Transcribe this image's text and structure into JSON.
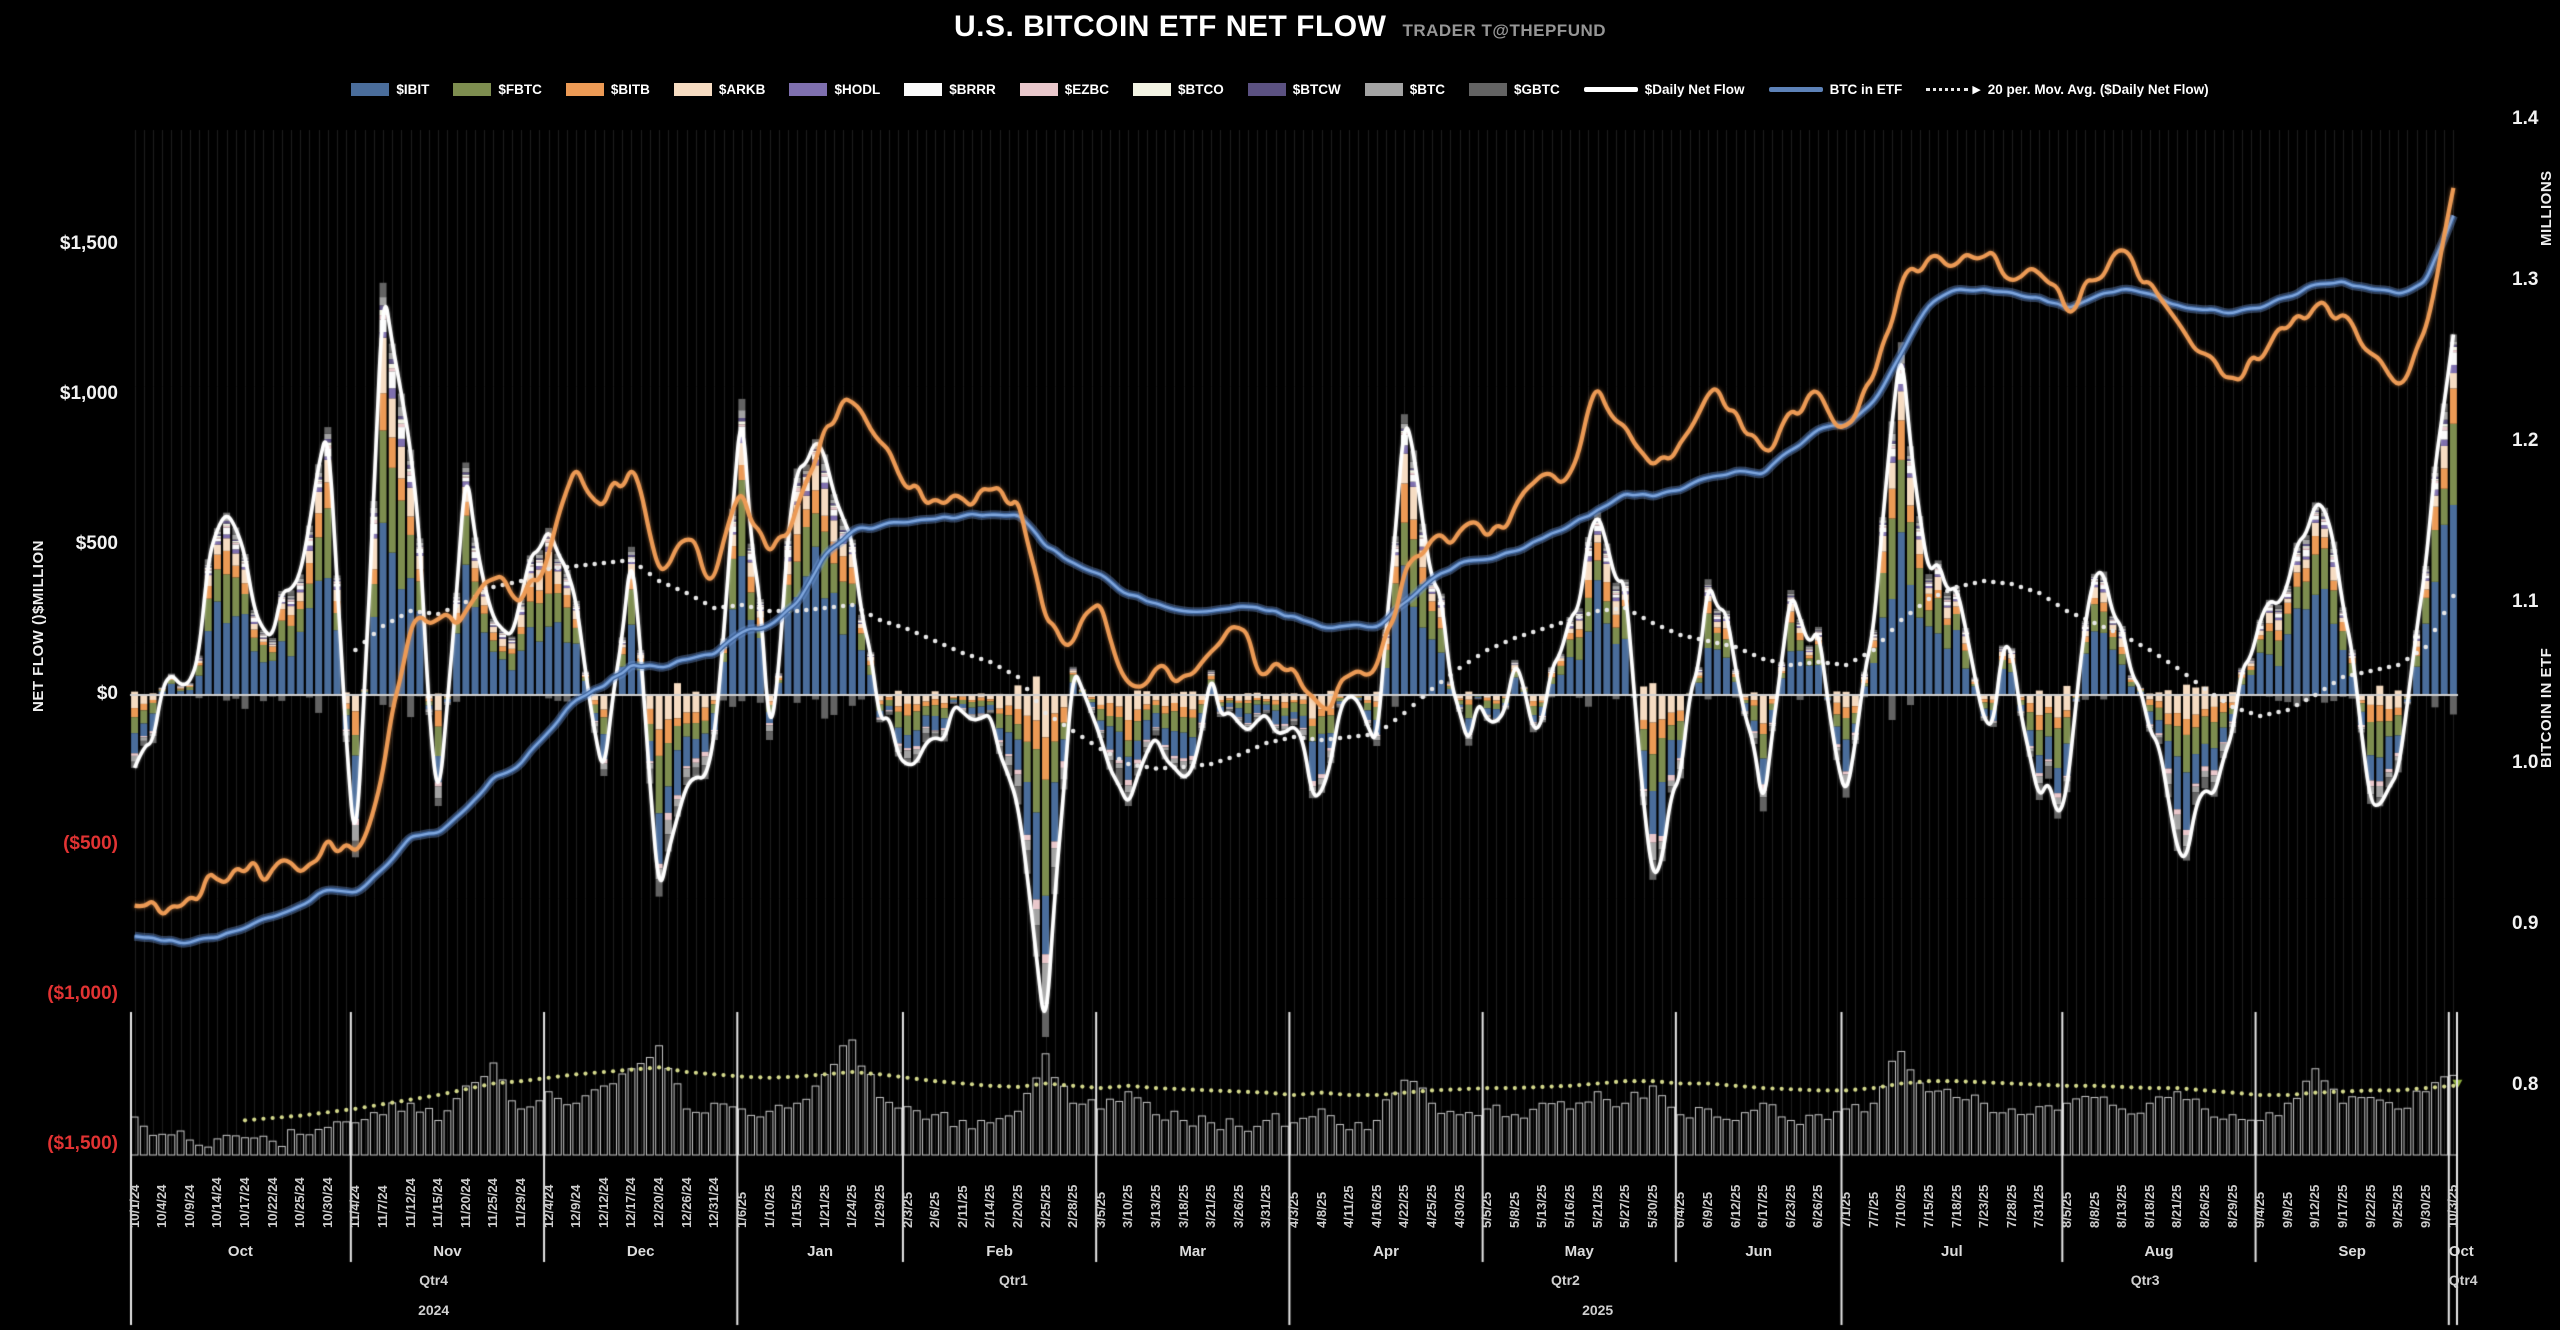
{
  "title": "U.S. BITCOIN ETF NET FLOW",
  "subtitle": "TRADER T@THEPFUND",
  "colors": {
    "background": "#000000",
    "gridline": "#1e1e1e",
    "zero_line": "#cfcfcf",
    "separator": "#e8e8e8",
    "negative_tick": "#e23333",
    "daily_net_flow_line": "#ffffff",
    "btc_in_etf_line_core": "#7fa6dd",
    "btc_in_etf_line_glow": "#3f659c",
    "price_line_orange": "#ec9a55",
    "moving_avg_dots": "#e8e8e8",
    "volume_bar_outline": "#c9c9c9",
    "volume_ma_dots": "#d4d98c",
    "volume_ma_end_marker": "#8fae3e"
  },
  "legend": [
    {
      "label": "$IBIT",
      "color": "#4a6d9b",
      "type": "bar"
    },
    {
      "label": "$FBTC",
      "color": "#7d8d4f",
      "type": "bar"
    },
    {
      "label": "$BITB",
      "color": "#ec9a55",
      "type": "bar"
    },
    {
      "label": "$ARKB",
      "color": "#f6dcc2",
      "type": "bar"
    },
    {
      "label": "$HODL",
      "color": "#7e6fae",
      "type": "bar"
    },
    {
      "label": "$BRRR",
      "color": "#fafafa",
      "type": "bar"
    },
    {
      "label": "$EZBC",
      "color": "#e9c7cb",
      "type": "bar"
    },
    {
      "label": "$BTCO",
      "color": "#f2f3e3",
      "type": "bar"
    },
    {
      "label": "$BTCW",
      "color": "#5b5181",
      "type": "bar"
    },
    {
      "label": "$BTC",
      "color": "#a3a3a3",
      "type": "bar"
    },
    {
      "label": "$GBTC",
      "color": "#636363",
      "type": "bar"
    },
    {
      "label": "$Daily Net Flow",
      "color": "#ffffff",
      "type": "line"
    },
    {
      "label": "BTC in ETF",
      "color": "#5d82b8",
      "type": "line"
    },
    {
      "label": "20 per. Mov. Avg. ($Daily Net Flow)",
      "color": "#e8e8e8",
      "type": "dotted",
      "arrow": "▶"
    }
  ],
  "left_axis": {
    "title": "NET FLOW ()$MILLION",
    "ticks": [
      {
        "label": "$1,500",
        "value": 1500,
        "negative": false
      },
      {
        "label": "$1,000",
        "value": 1000,
        "negative": false
      },
      {
        "label": "$500",
        "value": 500,
        "negative": false
      },
      {
        "label": "$0",
        "value": 0,
        "negative": false
      },
      {
        "label": "($500)",
        "value": -500,
        "negative": true
      },
      {
        "label": "($1,000)",
        "value": -1000,
        "negative": true
      },
      {
        "label": "($1,500)",
        "value": -1500,
        "negative": true
      }
    ]
  },
  "right_axis": {
    "title": "BITCOIN IN ETF",
    "unit": "MILLIONS",
    "ticks": [
      1.4,
      1.3,
      1.2,
      1.1,
      1.0,
      0.9,
      0.8
    ]
  },
  "chart_data": {
    "type": "combo",
    "x_axis": {
      "date_labels": [
        "10/1/24",
        "10/4/24",
        "10/9/24",
        "10/14/24",
        "10/17/24",
        "10/22/24",
        "10/25/24",
        "10/30/24",
        "11/4/24",
        "11/7/24",
        "11/12/24",
        "11/15/24",
        "11/20/24",
        "11/25/24",
        "11/29/24",
        "12/4/24",
        "12/9/24",
        "12/12/24",
        "12/17/24",
        "12/20/24",
        "12/26/24",
        "12/31/24",
        "1/6/25",
        "1/10/25",
        "1/15/25",
        "1/21/25",
        "1/24/25",
        "1/29/25",
        "2/3/25",
        "2/6/25",
        "2/11/25",
        "2/14/25",
        "2/20/25",
        "2/25/25",
        "2/28/25",
        "3/5/25",
        "3/10/25",
        "3/13/25",
        "3/18/25",
        "3/21/25",
        "3/26/25",
        "3/31/25",
        "4/3/25",
        "4/8/25",
        "4/11/25",
        "4/16/25",
        "4/22/25",
        "4/25/25",
        "4/30/25",
        "5/5/25",
        "5/8/25",
        "5/13/25",
        "5/16/25",
        "5/21/25",
        "5/27/25",
        "5/30/25",
        "6/4/25",
        "6/9/25",
        "6/12/25",
        "6/17/25",
        "6/23/25",
        "6/26/25",
        "7/1/25",
        "7/7/25",
        "7/10/25",
        "7/15/25",
        "7/18/25",
        "7/23/25",
        "7/28/25",
        "7/31/25",
        "8/5/25",
        "8/8/25",
        "8/13/25",
        "8/18/25",
        "8/21/25",
        "8/26/25",
        "8/29/25",
        "9/4/25",
        "9/9/25",
        "9/12/25",
        "9/17/25",
        "9/22/25",
        "9/25/25",
        "9/30/25",
        "10/3/25"
      ],
      "month_labels": [
        {
          "label": "Oct",
          "start": 0,
          "end": 7
        },
        {
          "label": "Nov",
          "start": 8,
          "end": 14
        },
        {
          "label": "Dec",
          "start": 15,
          "end": 21
        },
        {
          "label": "Jan",
          "start": 22,
          "end": 27
        },
        {
          "label": "Feb",
          "start": 28,
          "end": 34
        },
        {
          "label": "Mar",
          "start": 35,
          "end": 41
        },
        {
          "label": "Apr",
          "start": 42,
          "end": 48
        },
        {
          "label": "May",
          "start": 49,
          "end": 55
        },
        {
          "label": "Jun",
          "start": 56,
          "end": 61
        },
        {
          "label": "Jul",
          "start": 62,
          "end": 69
        },
        {
          "label": "Aug",
          "start": 70,
          "end": 76
        },
        {
          "label": "Sep",
          "start": 77,
          "end": 83
        },
        {
          "label": "Oct",
          "start": 84,
          "end": 84
        }
      ],
      "quarter_labels": [
        {
          "label": "Qtr4",
          "start": 0,
          "end": 21
        },
        {
          "label": "Qtr1",
          "start": 22,
          "end": 41
        },
        {
          "label": "Qtr2",
          "start": 42,
          "end": 61
        },
        {
          "label": "Qtr3",
          "start": 62,
          "end": 83
        },
        {
          "label": "Qtr4",
          "start": 84,
          "end": 84
        }
      ],
      "year_labels": [
        {
          "label": "2024",
          "start": 0,
          "end": 21
        },
        {
          "label": "2025",
          "start": 22,
          "end": 84
        }
      ]
    },
    "left_axis_range_musd": [
      -1500,
      1500
    ],
    "right_axis_range_millions": [
      0.8,
      1.4
    ],
    "series": [
      {
        "name": "$Daily Net Flow",
        "axis": "left",
        "unit": "$M",
        "style": "white-line",
        "values": [
          -243,
          25,
          40,
          556,
          470,
          190,
          402,
          893,
          -541,
          1374,
          818,
          -370,
          775,
          254,
          320,
          557,
          314,
          -270,
          494,
          -672,
          -300,
          -150,
          987,
          -150,
          755,
          802,
          518,
          -91,
          -235,
          -140,
          -57,
          -61,
          -365,
          -1140,
          94,
          -143,
          -370,
          -135,
          -280,
          83,
          -93,
          -61,
          -100,
          -326,
          1,
          -170,
          936,
          380,
          -56,
          -86,
          117,
          -91,
          260,
          609,
          385,
          -616,
          -278,
          386,
          86,
          -388,
          350,
          227,
          -342,
          217,
          1176,
          403,
          363,
          -86,
          157,
          -350,
          -324,
          404,
          230,
          -122,
          -520,
          -311,
          -127,
          251,
          364,
          642,
          292,
          -363,
          -258,
          430,
          1175
        ]
      },
      {
        "name": "20 per. Mov. Avg. ($Daily Net Flow)",
        "axis": "left",
        "unit": "$M",
        "style": "white-dotted",
        "values": [
          null,
          null,
          null,
          null,
          null,
          null,
          null,
          null,
          150,
          230,
          280,
          270,
          310,
          360,
          380,
          420,
          430,
          440,
          450,
          380,
          340,
          290,
          300,
          280,
          280,
          290,
          300,
          250,
          220,
          180,
          140,
          110,
          60,
          -60,
          -120,
          -180,
          -230,
          -245,
          -240,
          -230,
          -200,
          -160,
          -140,
          -150,
          -140,
          -130,
          -60,
          20,
          90,
          150,
          190,
          220,
          250,
          280,
          290,
          240,
          200,
          180,
          160,
          120,
          100,
          110,
          100,
          150,
          250,
          320,
          360,
          380,
          370,
          340,
          280,
          240,
          200,
          150,
          90,
          20,
          -40,
          -70,
          -50,
          0,
          60,
          80,
          100,
          160,
          330
        ]
      },
      {
        "name": "BTC in ETF",
        "axis": "right",
        "unit": "millions BTC",
        "style": "blue-line",
        "values": [
          0.893,
          0.89,
          0.889,
          0.892,
          0.898,
          0.905,
          0.912,
          0.922,
          0.92,
          0.935,
          0.955,
          0.957,
          0.972,
          0.992,
          1.0,
          1.02,
          1.04,
          1.048,
          1.062,
          1.06,
          1.065,
          1.068,
          1.082,
          1.086,
          1.1,
          1.13,
          1.145,
          1.148,
          1.15,
          1.152,
          1.154,
          1.155,
          1.155,
          1.135,
          1.125,
          1.118,
          1.105,
          1.1,
          1.095,
          1.095,
          1.098,
          1.095,
          1.092,
          1.085,
          1.086,
          1.085,
          1.1,
          1.115,
          1.125,
          1.127,
          1.132,
          1.14,
          1.148,
          1.158,
          1.168,
          1.166,
          1.17,
          1.178,
          1.182,
          1.18,
          1.195,
          1.208,
          1.21,
          1.225,
          1.255,
          1.285,
          1.295,
          1.295,
          1.293,
          1.29,
          1.283,
          1.29,
          1.295,
          1.292,
          1.285,
          1.282,
          1.28,
          1.283,
          1.29,
          1.298,
          1.3,
          1.295,
          1.292,
          1.3,
          1.34
        ]
      },
      {
        "name": "orange_price_line",
        "axis": "right",
        "unit": "right-axis units",
        "style": "orange-line",
        "values": [
          0.912,
          0.905,
          0.918,
          0.928,
          0.932,
          0.935,
          0.932,
          0.955,
          0.945,
          0.995,
          1.085,
          1.09,
          1.095,
          1.115,
          1.1,
          1.13,
          1.185,
          1.16,
          1.185,
          1.12,
          1.14,
          1.115,
          1.17,
          1.13,
          1.16,
          1.21,
          1.225,
          1.2,
          1.17,
          1.165,
          1.165,
          1.17,
          1.165,
          1.09,
          1.075,
          1.1,
          1.05,
          1.06,
          1.055,
          1.07,
          1.085,
          1.055,
          1.06,
          1.035,
          1.055,
          1.06,
          1.12,
          1.14,
          1.145,
          1.14,
          1.16,
          1.18,
          1.18,
          1.235,
          1.21,
          1.185,
          1.2,
          1.23,
          1.22,
          1.195,
          1.22,
          1.232,
          1.21,
          1.24,
          1.3,
          1.315,
          1.31,
          1.315,
          1.3,
          1.305,
          1.28,
          1.3,
          1.32,
          1.3,
          1.275,
          1.255,
          1.24,
          1.25,
          1.27,
          1.285,
          1.28,
          1.255,
          1.235,
          1.27,
          1.36
        ]
      },
      {
        "name": "volume_histogram",
        "axis": "none",
        "unit": "relative 0-100",
        "style": "hollow-bars",
        "values": [
          33,
          18,
          13,
          14,
          15,
          12,
          18,
          24,
          28,
          35,
          45,
          30,
          60,
          80,
          40,
          55,
          45,
          60,
          75,
          95,
          40,
          45,
          40,
          38,
          45,
          70,
          100,
          50,
          42,
          35,
          30,
          28,
          38,
          88,
          45,
          40,
          55,
          35,
          30,
          28,
          25,
          30,
          28,
          40,
          22,
          30,
          65,
          45,
          35,
          40,
          35,
          45,
          40,
          55,
          45,
          60,
          35,
          40,
          30,
          45,
          30,
          35,
          40,
          45,
          90,
          55,
          50,
          45,
          40,
          42,
          45,
          50,
          40,
          45,
          55,
          40,
          35,
          30,
          45,
          75,
          45,
          50,
          40,
          55,
          70
        ]
      },
      {
        "name": "volume_moving_avg",
        "axis": "none",
        "unit": "relative 0-100",
        "style": "yellow-dotted",
        "values": [
          null,
          null,
          null,
          null,
          18,
          20,
          22,
          25,
          28,
          32,
          36,
          40,
          45,
          50,
          52,
          55,
          58,
          60,
          62,
          64,
          60,
          58,
          56,
          55,
          56,
          58,
          60,
          58,
          55,
          52,
          50,
          48,
          47,
          50,
          48,
          46,
          48,
          46,
          45,
          44,
          43,
          42,
          40,
          42,
          40,
          40,
          42,
          44,
          45,
          46,
          46,
          47,
          48,
          50,
          52,
          52,
          50,
          50,
          48,
          46,
          45,
          44,
          44,
          46,
          50,
          52,
          52,
          51,
          50,
          49,
          48,
          48,
          47,
          46,
          46,
          44,
          42,
          40,
          40,
          42,
          43,
          44,
          44,
          46,
          48
        ]
      }
    ],
    "stacked_bars_note": "daily stacked ETF flow bars sum to $Daily Net Flow; stack order IBIT,FBTC,BITB,ARKB,HODL,BRRR,EZBC,BTCO,BTCW,BTC,GBTC"
  }
}
